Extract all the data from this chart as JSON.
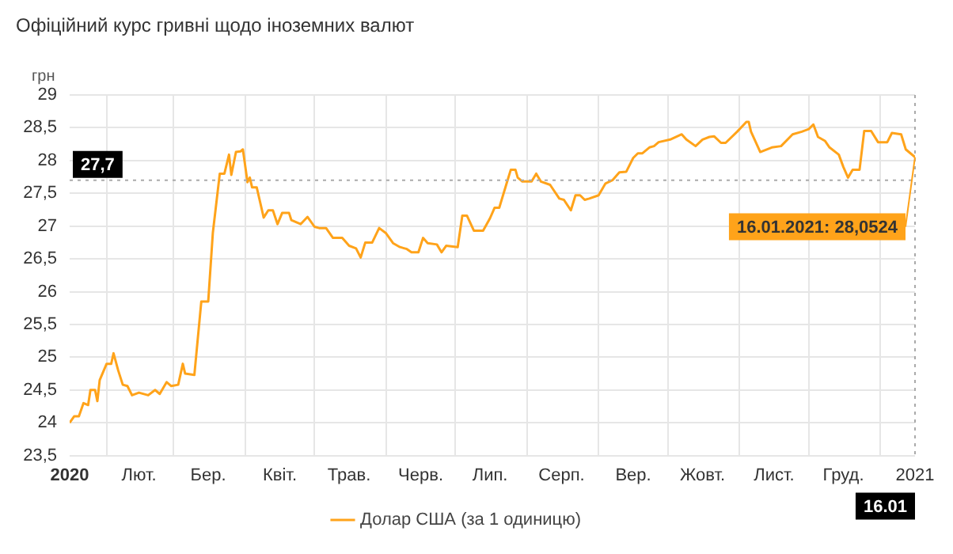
{
  "chart_data": {
    "type": "line",
    "title": "Офіційний курс гривні щодо іноземних валют",
    "ylabel": "грн",
    "xlim": [
      "2020-01-16",
      "2021-01-16"
    ],
    "xticks": [
      {
        "value": "2020-01-16",
        "label": "2020"
      },
      {
        "value": "2020-02-01",
        "label": null
      },
      {
        "value": "2020-02-15",
        "label": "Лют."
      },
      {
        "value": "2020-03-01",
        "label": null
      },
      {
        "value": "2020-03-16",
        "label": "Бер."
      },
      {
        "value": "2020-04-01",
        "label": null
      },
      {
        "value": "2020-04-16",
        "label": "Квіт."
      },
      {
        "value": "2020-05-01",
        "label": null
      },
      {
        "value": "2020-05-16",
        "label": "Трав."
      },
      {
        "value": "2020-06-01",
        "label": null
      },
      {
        "value": "2020-06-16",
        "label": "Черв."
      },
      {
        "value": "2020-07-01",
        "label": null
      },
      {
        "value": "2020-07-16",
        "label": "Лип."
      },
      {
        "value": "2020-08-01",
        "label": null
      },
      {
        "value": "2020-08-16",
        "label": "Серп."
      },
      {
        "value": "2020-09-01",
        "label": null
      },
      {
        "value": "2020-09-16",
        "label": "Вер."
      },
      {
        "value": "2020-10-01",
        "label": null
      },
      {
        "value": "2020-10-16",
        "label": "Жовт."
      },
      {
        "value": "2020-11-01",
        "label": null
      },
      {
        "value": "2020-11-16",
        "label": "Лист."
      },
      {
        "value": "2020-12-01",
        "label": null
      },
      {
        "value": "2020-12-16",
        "label": "Груд."
      },
      {
        "value": "2021-01-01",
        "label": null
      },
      {
        "value": "2021-01-16",
        "label": "2021"
      }
    ],
    "ylim": [
      23.5,
      29
    ],
    "yticks": [
      {
        "value": 23.5,
        "label": "23,5"
      },
      24,
      {
        "value": 24.5,
        "label": "24,5"
      },
      25,
      {
        "value": 25.5,
        "label": "25,5"
      },
      26,
      {
        "value": 26.5,
        "label": "26,5"
      },
      27,
      {
        "value": 27.5,
        "label": "27,5"
      },
      28,
      {
        "value": 28.5,
        "label": "28,5"
      },
      29
    ],
    "grid": true,
    "legend": "bottom",
    "marker": "none",
    "line_style": "solid",
    "ref_lines": [
      {
        "axis": "y",
        "value": 27.7,
        "label": "27,7",
        "color": "#aaaaaa",
        "line_style": "dotted"
      },
      {
        "axis": "x",
        "value": "2021-01-16",
        "label": "16.01",
        "color": "#aaaaaa",
        "line_style": "dotted"
      }
    ],
    "annotations": [
      {
        "text": "16.01.2021: 28,0524",
        "x": "2021-01-16",
        "y": 28.0524
      }
    ],
    "x": [
      "2020-01-16",
      "2020-01-18",
      "2020-01-20",
      "2020-01-22",
      "2020-01-24",
      "2020-01-25",
      "2020-01-27",
      "2020-01-28",
      "2020-01-29",
      "2020-02-01",
      "2020-02-03",
      "2020-02-04",
      "2020-02-06",
      "2020-02-08",
      "2020-02-10",
      "2020-02-12",
      "2020-02-15",
      "2020-02-19",
      "2020-02-22",
      "2020-02-24",
      "2020-02-27",
      "2020-02-29",
      "2020-03-03",
      "2020-03-05",
      "2020-03-06",
      "2020-03-10",
      "2020-03-13",
      "2020-03-16",
      "2020-03-18",
      "2020-03-21",
      "2020-03-23",
      "2020-03-25",
      "2020-03-26",
      "2020-03-28",
      "2020-03-30",
      "2020-03-31",
      "2020-04-02",
      "2020-04-03",
      "2020-04-04",
      "2020-04-06",
      "2020-04-09",
      "2020-04-11",
      "2020-04-13",
      "2020-04-15",
      "2020-04-17",
      "2020-04-20",
      "2020-04-21",
      "2020-04-25",
      "2020-04-28",
      "2020-05-01",
      "2020-05-03",
      "2020-05-06",
      "2020-05-09",
      "2020-05-13",
      "2020-05-16",
      "2020-05-19",
      "2020-05-21",
      "2020-05-23",
      "2020-05-26",
      "2020-05-29",
      "2020-06-01",
      "2020-06-04",
      "2020-06-07",
      "2020-06-10",
      "2020-06-12",
      "2020-06-15",
      "2020-06-17",
      "2020-06-19",
      "2020-06-23",
      "2020-06-25",
      "2020-06-27",
      "2020-07-02",
      "2020-07-04",
      "2020-07-06",
      "2020-07-09",
      "2020-07-13",
      "2020-07-16",
      "2020-07-18",
      "2020-07-20",
      "2020-07-23",
      "2020-07-25",
      "2020-07-27",
      "2020-07-28",
      "2020-07-30",
      "2020-08-03",
      "2020-08-05",
      "2020-08-07",
      "2020-08-11",
      "2020-08-15",
      "2020-08-17",
      "2020-08-20",
      "2020-08-22",
      "2020-08-24",
      "2020-08-26",
      "2020-08-28",
      "2020-09-01",
      "2020-09-04",
      "2020-09-07",
      "2020-09-10",
      "2020-09-13",
      "2020-09-16",
      "2020-09-18",
      "2020-09-20",
      "2020-09-23",
      "2020-09-25",
      "2020-09-27",
      "2020-10-02",
      "2020-10-07",
      "2020-10-09",
      "2020-10-13",
      "2020-10-16",
      "2020-10-19",
      "2020-10-21",
      "2020-10-24",
      "2020-10-26",
      "2020-10-31",
      "2020-11-04",
      "2020-11-05",
      "2020-11-06",
      "2020-11-10",
      "2020-11-15",
      "2020-11-19",
      "2020-11-24",
      "2020-11-28",
      "2020-12-01",
      "2020-12-03",
      "2020-12-05",
      "2020-12-08",
      "2020-12-10",
      "2020-12-14",
      "2020-12-16",
      "2020-12-18",
      "2020-12-20",
      "2020-12-23",
      "2020-12-25",
      "2020-12-28",
      "2020-12-31",
      "2021-01-04",
      "2021-01-06",
      "2021-01-10",
      "2021-01-12",
      "2021-01-16"
    ],
    "series": [
      {
        "name": "Долар США (за 1 одиницю)",
        "color": "#ffa31a",
        "values": [
          24.0,
          24.1,
          24.1,
          24.3,
          24.27,
          24.5,
          24.5,
          24.33,
          24.65,
          24.9,
          24.9,
          25.06,
          24.8,
          24.58,
          24.56,
          24.42,
          24.46,
          24.42,
          24.5,
          24.44,
          24.62,
          24.56,
          24.58,
          24.9,
          24.75,
          24.73,
          25.85,
          25.85,
          26.9,
          27.8,
          27.8,
          28.09,
          27.78,
          28.13,
          28.14,
          28.17,
          27.67,
          27.74,
          27.59,
          27.59,
          27.13,
          27.24,
          27.24,
          27.03,
          27.2,
          27.2,
          27.09,
          27.03,
          27.14,
          26.99,
          26.97,
          26.97,
          26.82,
          26.82,
          26.7,
          26.66,
          26.52,
          26.75,
          26.75,
          26.97,
          26.89,
          26.74,
          26.68,
          26.65,
          26.6,
          26.6,
          26.82,
          26.74,
          26.72,
          26.6,
          26.7,
          26.68,
          27.16,
          27.16,
          26.93,
          26.93,
          27.12,
          27.28,
          27.28,
          27.63,
          27.86,
          27.86,
          27.74,
          27.68,
          27.68,
          27.8,
          27.68,
          27.63,
          27.42,
          27.4,
          27.24,
          27.47,
          27.47,
          27.4,
          27.42,
          27.47,
          27.65,
          27.7,
          27.82,
          27.83,
          28.04,
          28.11,
          28.11,
          28.2,
          28.22,
          28.28,
          28.32,
          28.4,
          28.32,
          28.22,
          28.32,
          28.36,
          28.37,
          28.27,
          28.27,
          28.44,
          28.59,
          28.59,
          28.44,
          28.13,
          28.2,
          28.22,
          28.4,
          28.44,
          28.48,
          28.55,
          28.36,
          28.3,
          28.2,
          28.09,
          27.9,
          27.74,
          27.86,
          27.86,
          28.45,
          28.45,
          28.28,
          28.28,
          28.42,
          28.4,
          28.17,
          28.0524
        ]
      }
    ]
  }
}
